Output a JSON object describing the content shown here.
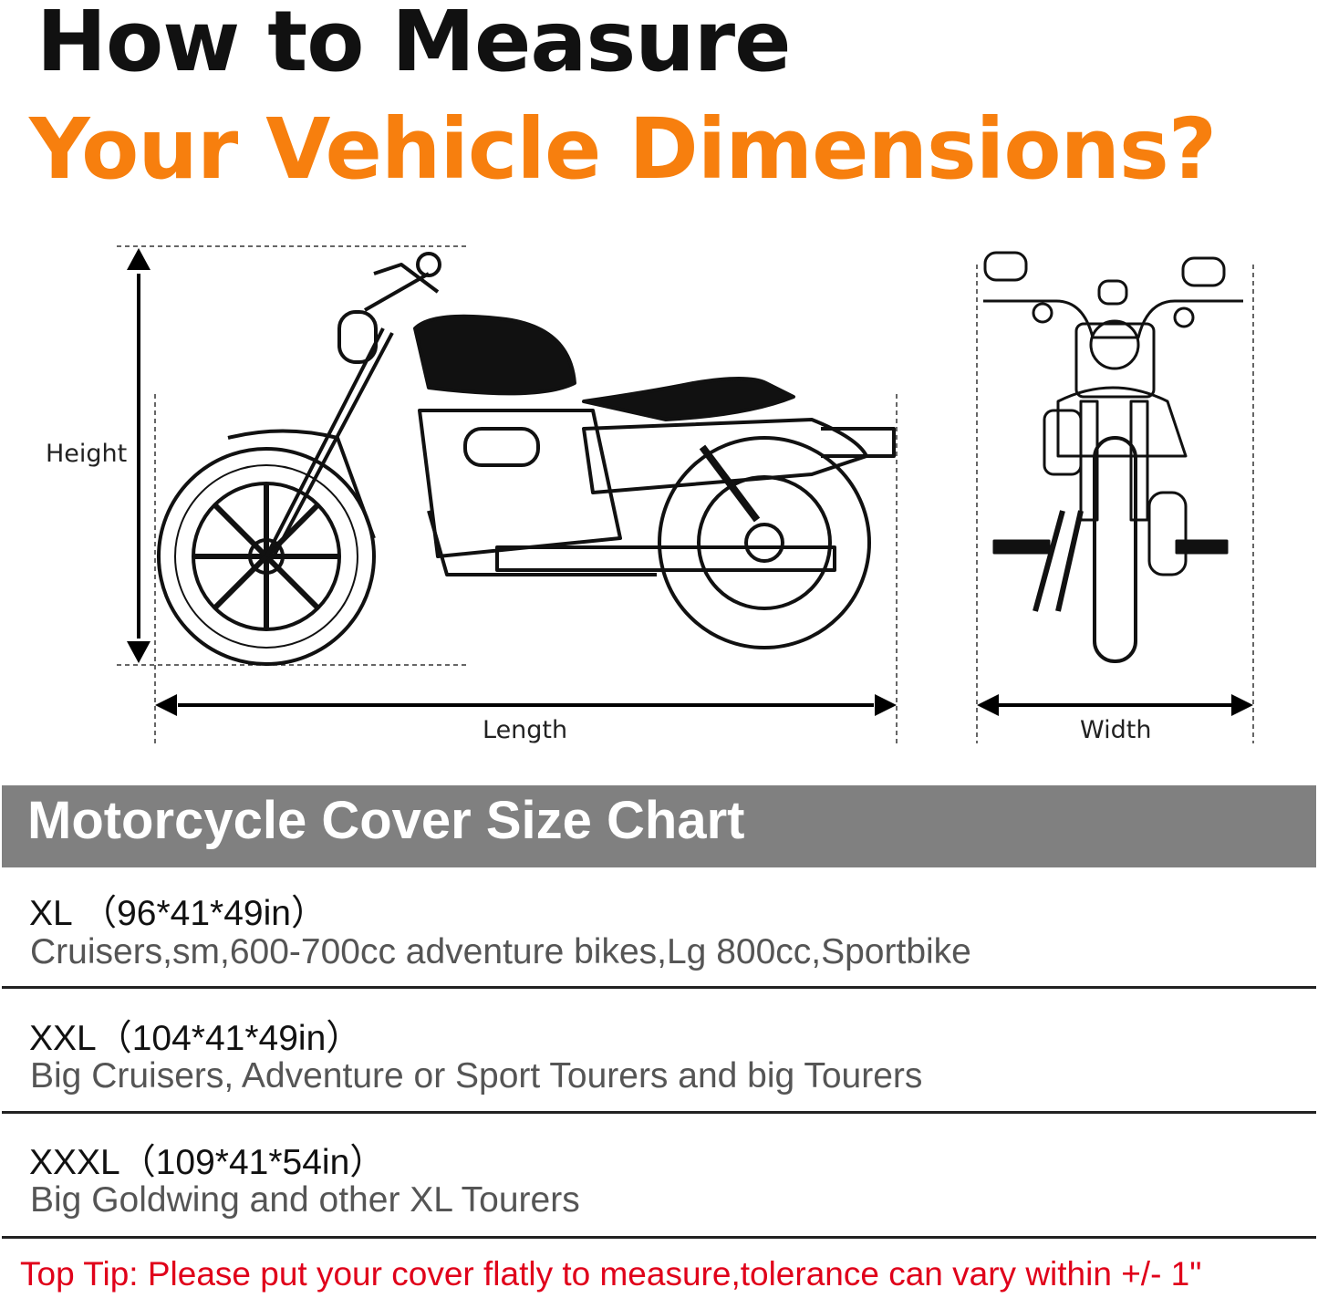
{
  "header": {
    "title_line1": "How to Measure",
    "title_line2": "Your Vehicle Dimensions?",
    "accent_color": "#f77f0e"
  },
  "diagram": {
    "height_label": "Height",
    "length_label": "Length",
    "width_label": "Width",
    "side_view_icon": "motorcycle-side-view",
    "front_view_icon": "motorcycle-front-view"
  },
  "size_chart": {
    "title": "Motorcycle Cover Size Chart",
    "banner_color": "#808080",
    "rows": [
      {
        "size": "XL （96*41*49in）",
        "description": "Cruisers,sm,600-700cc adventure bikes,Lg 800cc,Sportbike"
      },
      {
        "size": "XXL（104*41*49in）",
        "description": "Big Cruisers, Adventure or Sport Tourers and big Tourers"
      },
      {
        "size": "XXXL（109*41*54in）",
        "description": "Big Goldwing and other XL Tourers"
      }
    ]
  },
  "tip": {
    "text": "Top Tip: Please put your cover flatly to measure,tolerance can vary within +/- 1\"",
    "color": "#e0001a"
  }
}
